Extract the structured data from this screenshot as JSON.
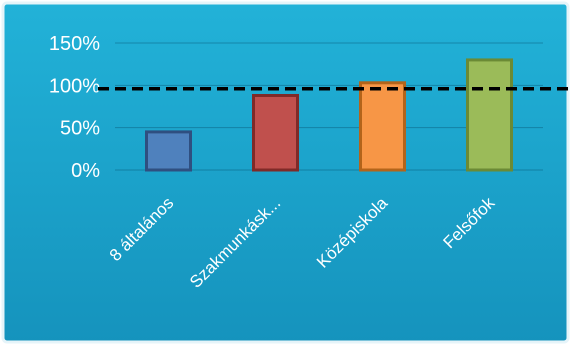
{
  "chart_data": {
    "type": "bar",
    "categories": [
      "8 általános",
      "Szakmunkásk...",
      "Középiskola",
      "Felsőfok"
    ],
    "values": [
      45,
      88,
      103,
      130
    ],
    "ylim": [
      0,
      150
    ],
    "yticks": [
      0,
      50,
      100,
      150
    ],
    "ytick_labels": [
      "0%",
      "50%",
      "100%",
      "150%"
    ],
    "reference_line": {
      "value": 96,
      "style": "dashed",
      "color": "#000000"
    },
    "grid": true,
    "legend": "none",
    "colors": {
      "background": "#1aa0c8",
      "bars": [
        "#4f81bd",
        "#c0504d",
        "#f79646",
        "#9bbb59"
      ],
      "bar_borders": [
        "#2f4f80",
        "#7f2a28",
        "#b3641a",
        "#6b8a35"
      ]
    }
  }
}
